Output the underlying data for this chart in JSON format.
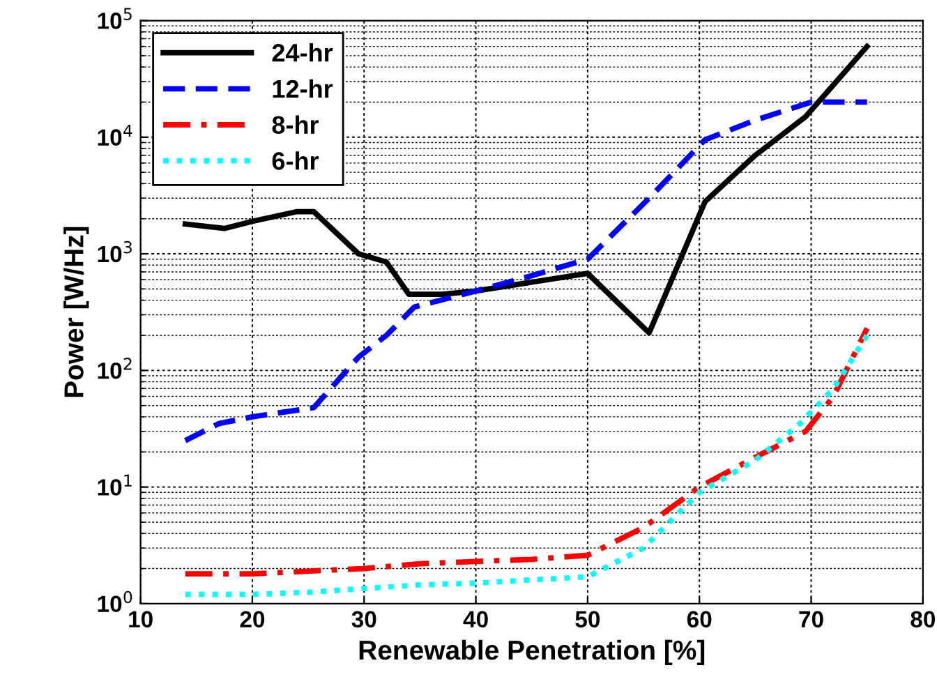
{
  "chart_data": {
    "type": "line",
    "xlabel": "Renewable Penetration [%]",
    "ylabel": "Power [W/Hz]",
    "log": "y",
    "grid": true,
    "legend": "top left",
    "xlim": [
      10,
      80
    ],
    "xticks": [
      10,
      20,
      30,
      40,
      50,
      60,
      70,
      80
    ],
    "ylim": [
      1,
      100000
    ],
    "yticks": [
      {
        "value": 1,
        "label": "10$^{0}$"
      },
      {
        "value": 10,
        "label": "10$^{1}$"
      },
      {
        "value": 100,
        "label": "10$^{2}$"
      },
      {
        "value": 1000,
        "label": "10$^{3}$"
      },
      {
        "value": 10000,
        "label": "10$^{4}$"
      },
      {
        "value": 100000,
        "label": "10$^{5}$"
      }
    ],
    "series": [
      {
        "name": "24-hr",
        "color": "#000000",
        "line_style": "solid",
        "x": [
          14,
          17.5,
          20,
          24,
          25.5,
          29.5,
          32,
          34,
          37,
          40,
          50,
          55.5,
          60.5,
          65,
          69.5,
          75
        ],
        "values": [
          1800,
          1650,
          1900,
          2300,
          2300,
          1000,
          850,
          450,
          450,
          480,
          680,
          210,
          2800,
          7000,
          15000,
          60000
        ]
      },
      {
        "name": "12-hr",
        "color": "#0000ff",
        "line_style": "dashed",
        "x": [
          14,
          17,
          20,
          25.5,
          29.5,
          32,
          34.5,
          40,
          45,
          50,
          55.5,
          60.5,
          65,
          70,
          75
        ],
        "values": [
          25,
          35,
          40,
          48,
          130,
          200,
          350,
          480,
          650,
          900,
          3000,
          9500,
          14000,
          20000,
          20000
        ]
      },
      {
        "name": "8-hr",
        "color": "#ff0000",
        "line_style": "dashdot",
        "x": [
          14,
          20,
          25,
          30,
          35,
          40,
          45,
          50,
          55,
          60,
          65,
          69.5,
          72,
          75
        ],
        "values": [
          1.8,
          1.8,
          1.9,
          2.0,
          2.2,
          2.3,
          2.4,
          2.6,
          4.5,
          10,
          18,
          30,
          60,
          230
        ]
      },
      {
        "name": "6-hr",
        "color": "#00ffff",
        "line_style": "dotted",
        "x": [
          14,
          20,
          25,
          30,
          35,
          40,
          45,
          50,
          55,
          60,
          65,
          69,
          72,
          75
        ],
        "values": [
          1.2,
          1.2,
          1.25,
          1.35,
          1.45,
          1.5,
          1.6,
          1.7,
          3,
          9,
          17,
          35,
          70,
          200
        ]
      }
    ]
  }
}
